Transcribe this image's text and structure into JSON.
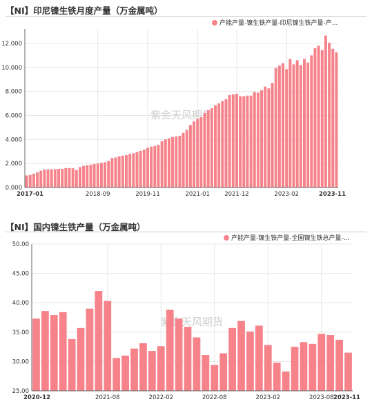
{
  "charts": [
    {
      "title": "【NI】印尼镍生铁月度产量（万金属吨）",
      "legend": "产能产量-镍生铁产量-印尼镍生铁产量-产...",
      "watermark": "紫金天风期货",
      "color": "#f6828a"
    },
    {
      "title": "【NI】国内镍生铁产量（万金属吨）",
      "legend": "产能产量-镍生铁产量-全国镍生铁总产量-...",
      "watermark": "紫金天风期货",
      "color": "#f6828a"
    }
  ],
  "chart_data": [
    {
      "type": "bar",
      "title": "【NI】印尼镍生铁月度产量（万金属吨）",
      "series": [
        {
          "name": "产能产量-镍生铁产量-印尼镍生铁产量-产...",
          "values": [
            1.0,
            1.05,
            1.15,
            1.25,
            1.4,
            1.5,
            1.5,
            1.52,
            1.52,
            1.55,
            1.55,
            1.62,
            1.62,
            1.6,
            1.45,
            1.7,
            1.8,
            1.85,
            1.9,
            1.95,
            2.0,
            2.05,
            2.1,
            2.2,
            2.45,
            2.5,
            2.6,
            2.65,
            2.7,
            2.8,
            2.85,
            2.95,
            3.05,
            3.15,
            3.3,
            3.4,
            3.45,
            3.55,
            3.85,
            4.0,
            4.1,
            4.2,
            4.25,
            4.3,
            4.55,
            4.8,
            5.2,
            5.5,
            5.7,
            5.85,
            6.2,
            6.45,
            6.6,
            6.85,
            7.0,
            7.2,
            7.35,
            7.7,
            7.75,
            7.8,
            7.6,
            7.6,
            7.65,
            7.65,
            7.95,
            7.9,
            8.1,
            8.4,
            8.25,
            8.7,
            9.95,
            10.15,
            10.35,
            9.85,
            10.7,
            10.25,
            10.6,
            10.2,
            10.7,
            10.4,
            11.0,
            11.6,
            11.8,
            11.45,
            12.65,
            12.05,
            11.55,
            11.25
          ]
        }
      ],
      "x_tick_labels": [
        "2017-01",
        "2018-09",
        "2019-11",
        "2021-01",
        "2021-12",
        "2023-02",
        "2023-11"
      ],
      "y_tick_labels": [
        "0.000",
        "2.000",
        "4.000",
        "6.000",
        "8.000",
        "10.000",
        "12.000"
      ],
      "ylim": [
        0,
        13.2
      ],
      "grid": true,
      "legend_position": "top-right"
    },
    {
      "type": "bar",
      "title": "【NI】国内镍生铁产量（万金属吨）",
      "series": [
        {
          "name": "产能产量-镍生铁产量-全国镍生铁总产量-...",
          "values": [
            37.3,
            38.6,
            37.9,
            38.4,
            33.8,
            35.7,
            39.0,
            42.0,
            40.3,
            30.6,
            31.0,
            32.2,
            33.1,
            31.8,
            32.6,
            38.8,
            37.3,
            35.9,
            34.1,
            31.1,
            29.4,
            31.4,
            35.7,
            36.9,
            35.1,
            36.1,
            32.8,
            29.8,
            28.3,
            32.5,
            33.3,
            33.0,
            34.7,
            34.5,
            33.7,
            31.5
          ]
        }
      ],
      "x_tick_labels": [
        "2020-12",
        "2021-08",
        "2022-02",
        "2022-08",
        "2023-02",
        "2023-08",
        "2023-11"
      ],
      "y_tick_labels": [
        "25.00",
        "30.00",
        "35.00",
        "40.00",
        "45.00",
        "50.00"
      ],
      "ylim": [
        25,
        50
      ],
      "grid": true,
      "legend_position": "top-right"
    }
  ]
}
